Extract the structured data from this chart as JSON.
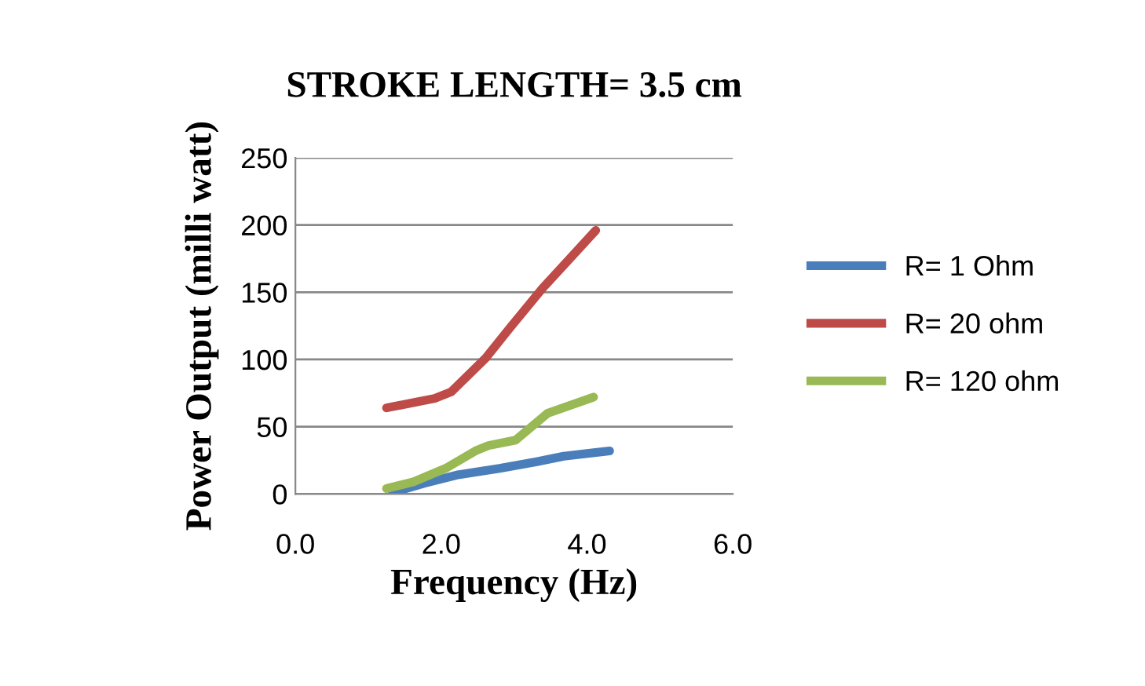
{
  "chart_data": {
    "type": "line",
    "title": "STROKE LENGTH= 3.5 cm",
    "xlabel": "Frequency (Hz)",
    "ylabel": "Power Output (milli watt)",
    "xlim": [
      0,
      6
    ],
    "xticks": [
      {
        "value": 0,
        "label": "0.0"
      },
      {
        "value": 2,
        "label": "2.0"
      },
      {
        "value": 4,
        "label": "4.0"
      },
      {
        "value": 6,
        "label": "6.0"
      }
    ],
    "ylim": [
      0,
      250
    ],
    "yticks": [
      0,
      50,
      100,
      150,
      200,
      250
    ],
    "grid": "y",
    "legend": "right",
    "marker": "none",
    "line_style": "solid",
    "series": [
      {
        "name": "R= 1 Ohm",
        "color": "#4a7ebb",
        "x": [
          1.33,
          1.77,
          2.21,
          2.8,
          3.31,
          3.68,
          4.31
        ],
        "values": [
          1,
          8,
          14,
          19,
          24,
          28,
          32
        ]
      },
      {
        "name": "R= 20 ohm",
        "color": "#be4b48",
        "x": [
          1.25,
          1.91,
          2.14,
          2.61,
          2.95,
          3.39,
          3.68,
          4.12
        ],
        "values": [
          64,
          71,
          76,
          101,
          124,
          153,
          170,
          196
        ]
      },
      {
        "name": "R= 120 ohm",
        "color": "#98b954",
        "x": [
          1.25,
          1.62,
          2.06,
          2.47,
          2.65,
          3.02,
          3.46,
          4.09
        ],
        "values": [
          4,
          9,
          19,
          32,
          36,
          40,
          60,
          72
        ]
      }
    ]
  }
}
